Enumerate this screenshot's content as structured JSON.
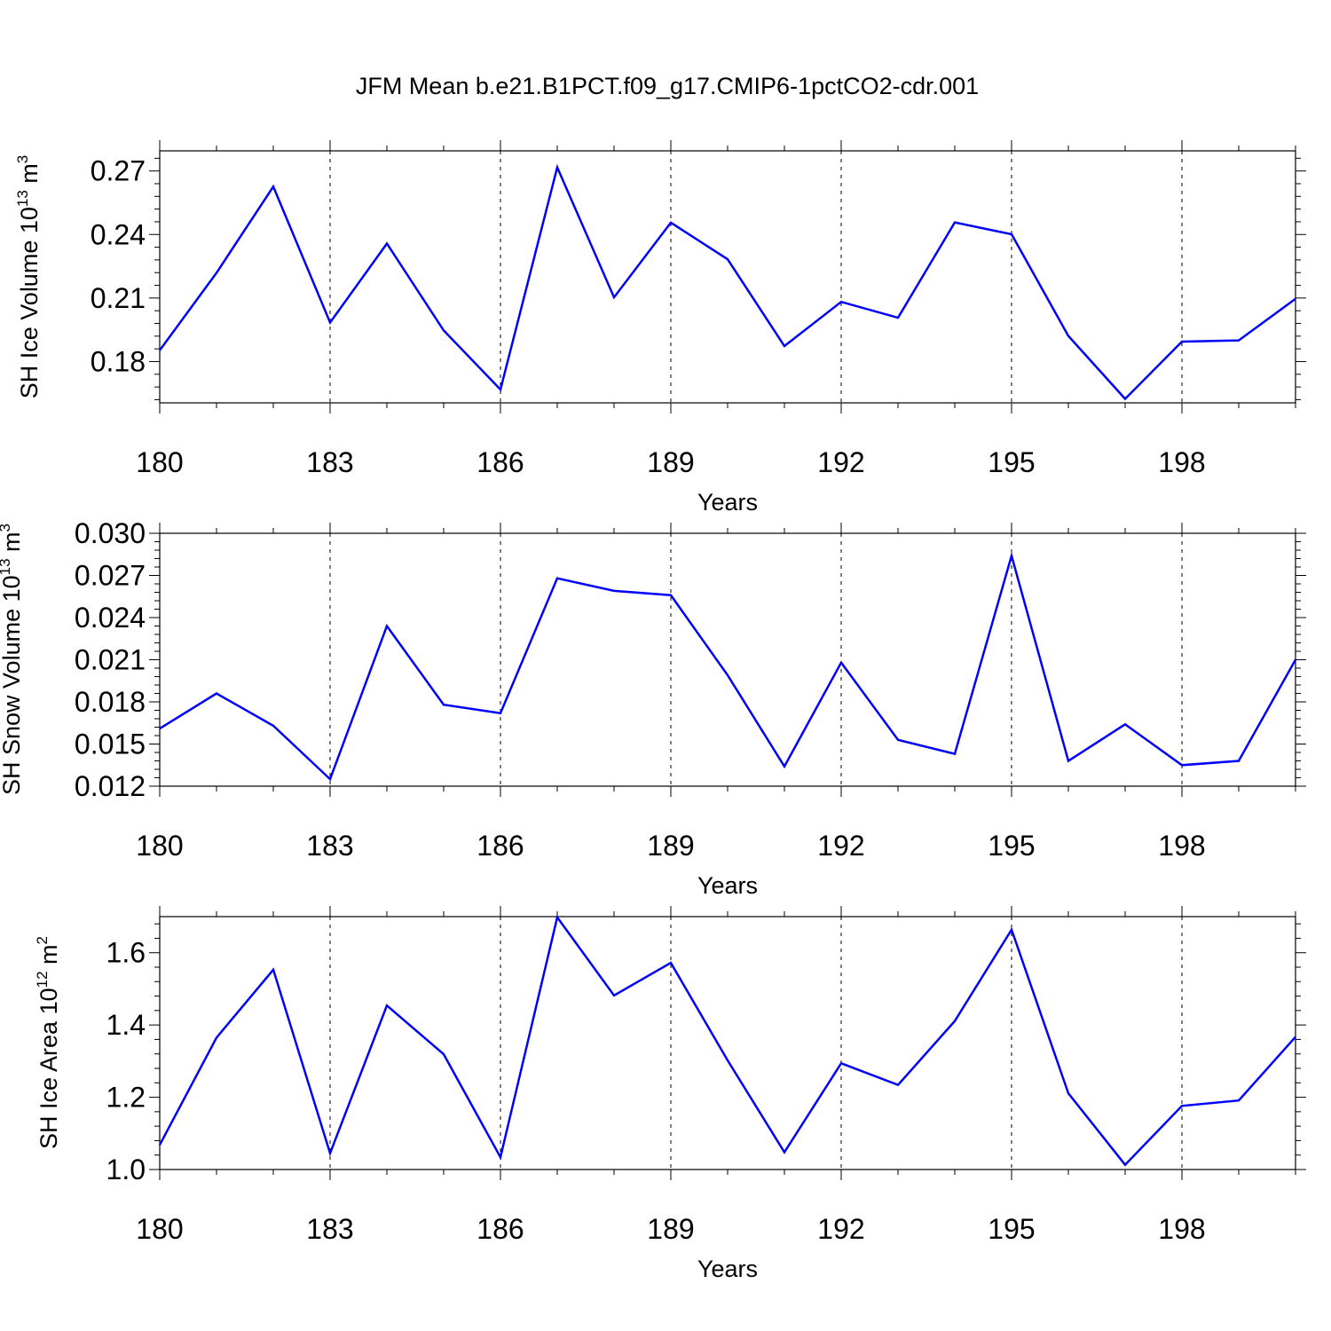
{
  "figure_title": "JFM Mean b.e21.B1PCT.f09_g17.CMIP6-1pctCO2-cdr.001",
  "line_color": "#0000ff",
  "chart_data": [
    {
      "type": "line",
      "ylabel": {
        "text": "SH Ice Volume 10",
        "exponent": "13",
        "unit_base": " m",
        "unit_exp": "3"
      },
      "xlabel": "Years",
      "x": [
        180,
        181,
        182,
        183,
        184,
        185,
        186,
        187,
        188,
        189,
        190,
        191,
        192,
        193,
        194,
        195,
        196,
        197,
        198,
        199,
        200
      ],
      "xlim": [
        180,
        200
      ],
      "xticks": [
        180,
        183,
        186,
        189,
        192,
        195,
        198
      ],
      "xtick_labels": [
        "180",
        "183",
        "186",
        "189",
        "192",
        "195",
        "198"
      ],
      "ylim": [
        0.1605,
        0.2795
      ],
      "yticks": [
        0.18,
        0.21,
        0.24,
        0.27
      ],
      "ytick_labels": [
        "0.18",
        "0.21",
        "0.24",
        "0.27"
      ],
      "yminor_step": 0.006,
      "grid": "dashed vertical at major x ticks",
      "series": [
        {
          "values": [
            0.1853,
            0.2219,
            0.2626,
            0.1984,
            0.2357,
            0.1947,
            0.1668,
            0.2717,
            0.2103,
            0.2456,
            0.2283,
            0.1873,
            0.2082,
            0.2007,
            0.2457,
            0.2401,
            0.1921,
            0.1624,
            0.1894,
            0.19,
            0.2096
          ]
        }
      ]
    },
    {
      "type": "line",
      "ylabel": {
        "text": "SH Snow Volume 10",
        "exponent": "13",
        "unit_base": " m",
        "unit_exp": "3"
      },
      "xlabel": "Years",
      "x": [
        180,
        181,
        182,
        183,
        184,
        185,
        186,
        187,
        188,
        189,
        190,
        191,
        192,
        193,
        194,
        195,
        196,
        197,
        198,
        199,
        200
      ],
      "xlim": [
        180,
        200
      ],
      "xticks": [
        180,
        183,
        186,
        189,
        192,
        195,
        198
      ],
      "xtick_labels": [
        "180",
        "183",
        "186",
        "189",
        "192",
        "195",
        "198"
      ],
      "ylim": [
        0.012,
        0.03
      ],
      "yticks": [
        0.012,
        0.015,
        0.018,
        0.021,
        0.024,
        0.027,
        0.03
      ],
      "ytick_labels": [
        "0.012",
        "0.015",
        "0.018",
        "0.021",
        "0.024",
        "0.027",
        "0.030"
      ],
      "yminor_step": 0.0006,
      "grid": "dashed vertical at major x ticks",
      "series": [
        {
          "values": [
            0.0161,
            0.0186,
            0.0163,
            0.0125,
            0.0234,
            0.0178,
            0.0172,
            0.0268,
            0.0259,
            0.0256,
            0.0199,
            0.0134,
            0.0208,
            0.0153,
            0.0143,
            0.0284,
            0.0138,
            0.0164,
            0.0135,
            0.0138,
            0.021
          ]
        }
      ]
    },
    {
      "type": "line",
      "ylabel": {
        "text": "SH Ice Area 10",
        "exponent": "12",
        "unit_base": " m",
        "unit_exp": "2"
      },
      "xlabel": "Years",
      "x": [
        180,
        181,
        182,
        183,
        184,
        185,
        186,
        187,
        188,
        189,
        190,
        191,
        192,
        193,
        194,
        195,
        196,
        197,
        198,
        199,
        200
      ],
      "xlim": [
        180,
        200
      ],
      "xticks": [
        180,
        183,
        186,
        189,
        192,
        195,
        198
      ],
      "xtick_labels": [
        "180",
        "183",
        "186",
        "189",
        "192",
        "195",
        "198"
      ],
      "ylim": [
        1.0,
        1.7
      ],
      "yticks": [
        1.0,
        1.2,
        1.4,
        1.6
      ],
      "ytick_labels": [
        "1.0",
        "1.2",
        "1.4",
        "1.6"
      ],
      "yminor_step": 0.04,
      "grid": "dashed vertical at major x ticks",
      "series": [
        {
          "values": [
            1.068,
            1.365,
            1.553,
            1.045,
            1.454,
            1.319,
            1.034,
            1.698,
            1.482,
            1.572,
            1.302,
            1.048,
            1.294,
            1.234,
            1.411,
            1.664,
            1.211,
            1.013,
            1.176,
            1.191,
            1.367
          ]
        }
      ]
    }
  ]
}
